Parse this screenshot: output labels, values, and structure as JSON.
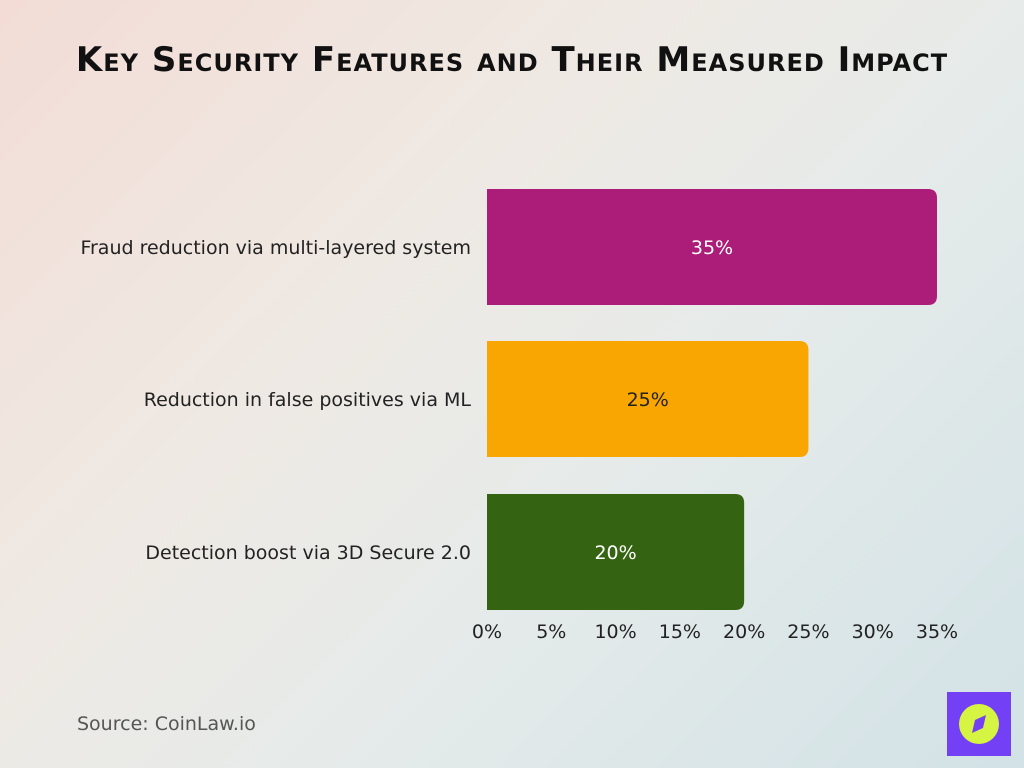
{
  "chart_data": {
    "type": "bar",
    "orientation": "horizontal",
    "title": "Key Security Features and Their Measured Impact",
    "categories": [
      "Fraud reduction via multi-layered system",
      "Reduction in false positives via ML",
      "Detection boost via 3D Secure 2.0"
    ],
    "values": [
      35,
      25,
      20
    ],
    "data_labels": [
      "35%",
      "25%",
      "20%"
    ],
    "colors": [
      "#ab1d79",
      "#f9a602",
      "#346312"
    ],
    "label_colors": [
      "#ffffff",
      "#222222",
      "#ffffff"
    ],
    "xlim": [
      0,
      35
    ],
    "x_ticks": [
      0,
      5,
      10,
      15,
      20,
      25,
      30,
      35
    ],
    "x_tick_labels": [
      "0%",
      "5%",
      "10%",
      "15%",
      "20%",
      "25%",
      "30%",
      "35%"
    ],
    "grid": false,
    "legend": "none"
  },
  "footer": {
    "source": "Source: CoinLaw.io",
    "logo": "compass-logo"
  }
}
